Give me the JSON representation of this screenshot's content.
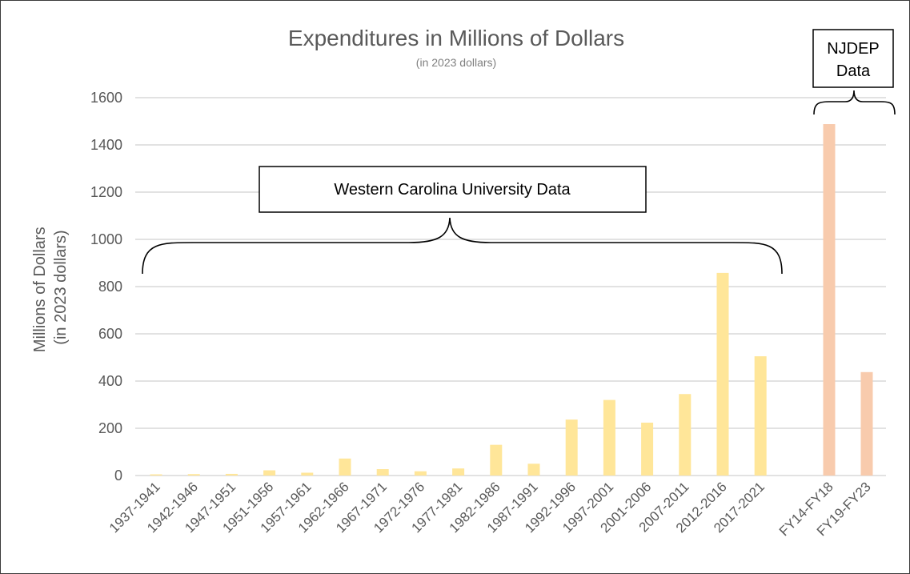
{
  "chart_data": {
    "type": "bar",
    "title": "Expenditures in Millions of Dollars",
    "subtitle": "(in 2023 dollars)",
    "ylabel_lines": [
      "Millions of Dollars",
      "(in 2023 dollars)"
    ],
    "xlabel": "",
    "ylim": [
      0,
      1600
    ],
    "yticks": [
      0,
      200,
      400,
      600,
      800,
      1000,
      1200,
      1400,
      1600
    ],
    "grid": true,
    "legend": "none",
    "categories": [
      "1937-1941",
      "1942-1946",
      "1947-1951",
      "1951-1956",
      "1957-1961",
      "1962-1966",
      "1967-1971",
      "1972-1976",
      "1977-1981",
      "1982-1986",
      "1987-1991",
      "1992-1996",
      "1997-2001",
      "2001-2006",
      "2007-2011",
      "2012-2016",
      "2017-2021",
      "FY14-FY18",
      "FY19-FY23"
    ],
    "values": [
      5,
      6,
      7,
      22,
      12,
      72,
      27,
      18,
      30,
      130,
      50,
      237,
      320,
      224,
      345,
      858,
      505,
      1488,
      438
    ],
    "bar_colors": [
      "#FFE699",
      "#FFE699",
      "#FFE699",
      "#FFE699",
      "#FFE699",
      "#FFE699",
      "#FFE699",
      "#FFE699",
      "#FFE699",
      "#FFE699",
      "#FFE699",
      "#FFE699",
      "#FFE699",
      "#FFE699",
      "#FFE699",
      "#FFE699",
      "#FFE699",
      "#F8CBAD",
      "#F8CBAD"
    ],
    "annotations": [
      {
        "text_lines": [
          "Western Carolina University Data"
        ],
        "group": "Western Carolina University",
        "bracket": true
      },
      {
        "text_lines": [
          "NJDEP",
          "Data"
        ],
        "group": "NJDEP",
        "bracket": true
      }
    ]
  },
  "colors": {
    "wcu_bar": "#FFE699",
    "njdep_bar": "#F8CBAD",
    "grid": "#D9D9D9",
    "text": "#595959"
  }
}
